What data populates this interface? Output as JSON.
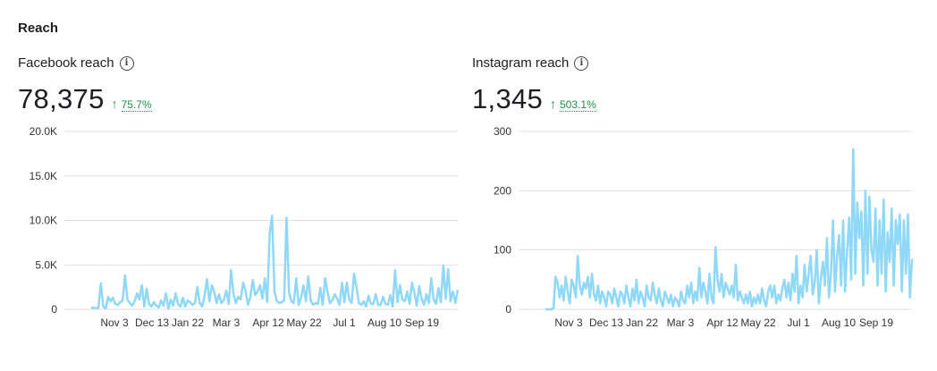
{
  "section": {
    "title": "Reach"
  },
  "panels": [
    {
      "title": "Facebook reach",
      "value": "78,375",
      "change": "75.7%",
      "info_icon": "info-icon",
      "arrow_icon": "arrow-up-icon"
    },
    {
      "title": "Instagram reach",
      "value": "1,345",
      "change": "503.1%",
      "info_icon": "info-icon",
      "arrow_icon": "arrow-up-icon"
    }
  ],
  "colors": {
    "line": "#8fd8f8",
    "positive": "#1e8e4a",
    "grid": "#dddfe2"
  },
  "chart_data": [
    {
      "type": "line",
      "title": "Facebook reach",
      "xlabel": "",
      "ylabel": "",
      "ylim": [
        0,
        20000
      ],
      "yticks": [
        0,
        5000,
        10000,
        15000,
        20000
      ],
      "ytick_labels": [
        "0",
        "5.0K",
        "10.0K",
        "15.0K",
        "20.0K"
      ],
      "xtick_labels": [
        "Nov 3",
        "Dec 13",
        "Jan 22",
        "Mar 3",
        "Apr 12",
        "May 22",
        "Jul 1",
        "Aug 10",
        "Sep 19"
      ],
      "grid": true,
      "series": [
        {
          "values": [
            200,
            150,
            150,
            150,
            2900,
            300,
            100,
            1400,
            900,
            1300,
            600,
            500,
            800,
            1000,
            3800,
            1100,
            700,
            400,
            900,
            1800,
            1100,
            2700,
            300,
            2300,
            600,
            300,
            800,
            400,
            200,
            1000,
            400,
            1800,
            100,
            1100,
            400,
            1800,
            600,
            300,
            1300,
            300,
            1000,
            800,
            500,
            700,
            2500,
            700,
            300,
            1500,
            3400,
            900,
            2700,
            2000,
            700,
            1700,
            700,
            1100,
            2100,
            600,
            4400,
            1800,
            700,
            1400,
            1100,
            3000,
            2100,
            500,
            1400,
            3300,
            1600,
            2000,
            2700,
            1200,
            3500,
            800,
            8500,
            10500,
            2000,
            900,
            700,
            800,
            1000,
            10300,
            1900,
            900,
            700,
            3500,
            500,
            1300,
            2700,
            900,
            3700,
            1000,
            500,
            700,
            600,
            2400,
            500,
            3500,
            2000,
            700,
            1000,
            1700,
            1200,
            500,
            3000,
            800,
            3000,
            1100,
            700,
            4000,
            2500,
            700,
            500,
            900,
            300,
            1500,
            600,
            600,
            1700,
            500,
            500,
            1400,
            600,
            500,
            1600,
            300,
            4400,
            800,
            2700,
            1100,
            900,
            2000,
            600,
            3000,
            1900,
            400,
            2600,
            1200,
            500,
            1700,
            700,
            3500,
            1100,
            600,
            2400,
            800,
            4900,
            1200,
            4500,
            900,
            2000,
            700,
            2200
          ]
        }
      ]
    },
    {
      "type": "line",
      "title": "Instagram reach",
      "xlabel": "",
      "ylabel": "",
      "ylim": [
        0,
        300
      ],
      "yticks": [
        0,
        100,
        200,
        300
      ],
      "ytick_labels": [
        "0",
        "100",
        "200",
        "300"
      ],
      "xtick_labels": [
        "Nov 3",
        "Dec 13",
        "Jan 22",
        "Mar 3",
        "Apr 12",
        "May 22",
        "Jul 1",
        "Aug 10",
        "Sep 19"
      ],
      "grid": true,
      "series": [
        {
          "values": [
            0,
            0,
            0,
            0,
            2,
            55,
            45,
            20,
            40,
            15,
            55,
            30,
            10,
            50,
            40,
            20,
            90,
            40,
            25,
            45,
            35,
            55,
            20,
            60,
            25,
            15,
            40,
            10,
            30,
            20,
            5,
            30,
            25,
            10,
            35,
            20,
            5,
            30,
            25,
            10,
            40,
            20,
            5,
            35,
            15,
            50,
            10,
            30,
            20,
            5,
            40,
            20,
            15,
            45,
            25,
            10,
            35,
            15,
            5,
            30,
            20,
            10,
            25,
            5,
            20,
            15,
            5,
            30,
            15,
            10,
            40,
            20,
            45,
            10,
            30,
            15,
            70,
            20,
            45,
            30,
            10,
            60,
            20,
            10,
            105,
            50,
            30,
            60,
            20,
            45,
            35,
            25,
            40,
            20,
            75,
            15,
            30,
            20,
            10,
            25,
            10,
            30,
            5,
            20,
            10,
            25,
            10,
            35,
            15,
            5,
            30,
            40,
            20,
            40,
            10,
            25,
            15,
            35,
            50,
            20,
            45,
            15,
            60,
            30,
            90,
            10,
            40,
            20,
            75,
            30,
            60,
            90,
            25,
            45,
            100,
            10,
            50,
            80,
            40,
            120,
            20,
            60,
            150,
            30,
            90,
            125,
            40,
            150,
            30,
            100,
            155,
            50,
            270,
            60,
            180,
            120,
            165,
            40,
            200,
            60,
            190,
            100,
            80,
            170,
            40,
            150,
            60,
            185,
            30,
            130,
            80,
            170,
            40,
            150,
            110,
            160,
            30,
            150,
            60,
            160,
            20,
            85
          ]
        }
      ]
    }
  ]
}
